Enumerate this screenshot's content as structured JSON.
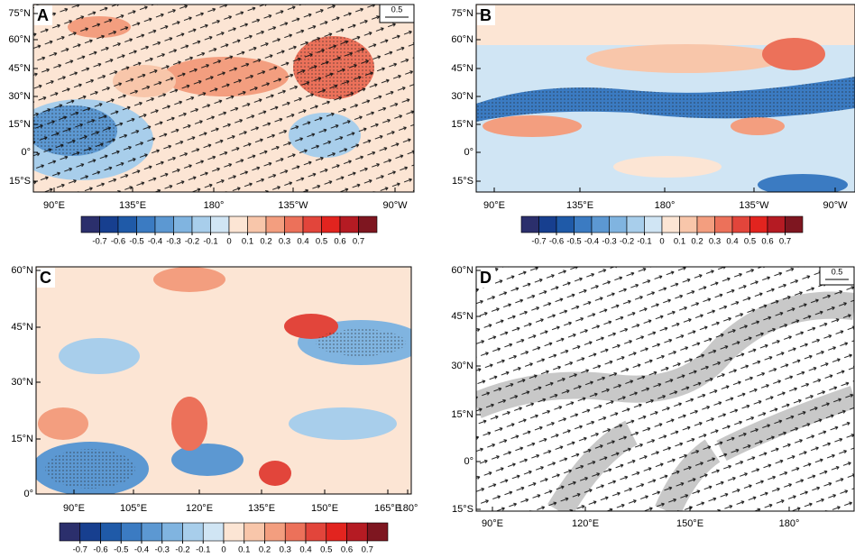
{
  "panels": [
    {
      "label": "A",
      "ref_vector": "0.5",
      "lat_ticks": [
        "75°N",
        "60°N",
        "45°N",
        "30°N",
        "15°N",
        "0°",
        "15°S"
      ],
      "lon_ticks": [
        "90°E",
        "135°E",
        "180°",
        "135°W",
        "90°W"
      ],
      "colorbar": [
        -0.7,
        -0.6,
        -0.5,
        -0.4,
        -0.3,
        -0.2,
        -0.1,
        0,
        0.1,
        0.2,
        0.3,
        0.4,
        0.5,
        0.6,
        0.7
      ]
    },
    {
      "label": "B",
      "lat_ticks": [
        "75°N",
        "60°N",
        "45°N",
        "30°N",
        "15°N",
        "0°",
        "15°S"
      ],
      "lon_ticks": [
        "90°E",
        "135°E",
        "180°",
        "135°W",
        "90°W"
      ],
      "colorbar": [
        -0.7,
        -0.6,
        -0.5,
        -0.4,
        -0.3,
        -0.2,
        -0.1,
        0,
        0.1,
        0.2,
        0.3,
        0.4,
        0.5,
        0.6,
        0.7
      ]
    },
    {
      "label": "C",
      "lat_ticks": [
        "60°N",
        "45°N",
        "30°N",
        "15°N",
        "0°"
      ],
      "lon_ticks": [
        "90°E",
        "105°E",
        "120°E",
        "135°E",
        "150°E",
        "165°E",
        "180°"
      ],
      "colorbar": [
        -0.7,
        -0.6,
        -0.5,
        -0.4,
        -0.3,
        -0.2,
        -0.1,
        0,
        0.1,
        0.2,
        0.3,
        0.4,
        0.5,
        0.6,
        0.7
      ]
    },
    {
      "label": "D",
      "ref_vector": "0.5",
      "lat_ticks": [
        "60°N",
        "45°N",
        "30°N",
        "15°N",
        "0°",
        "15°S"
      ],
      "lon_ticks": [
        "90°E",
        "120°E",
        "150°E",
        "180°"
      ]
    }
  ],
  "colorbar_colors": [
    "#2b2f6c",
    "#173f8f",
    "#1f5aa8",
    "#3b7bc2",
    "#5c98d2",
    "#80b4e0",
    "#a8ceeb",
    "#d0e5f4",
    "#fce5d4",
    "#f8c6aa",
    "#f39e7f",
    "#ec715a",
    "#e2453b",
    "#e2241f",
    "#b51b23",
    "#7e1620"
  ]
}
